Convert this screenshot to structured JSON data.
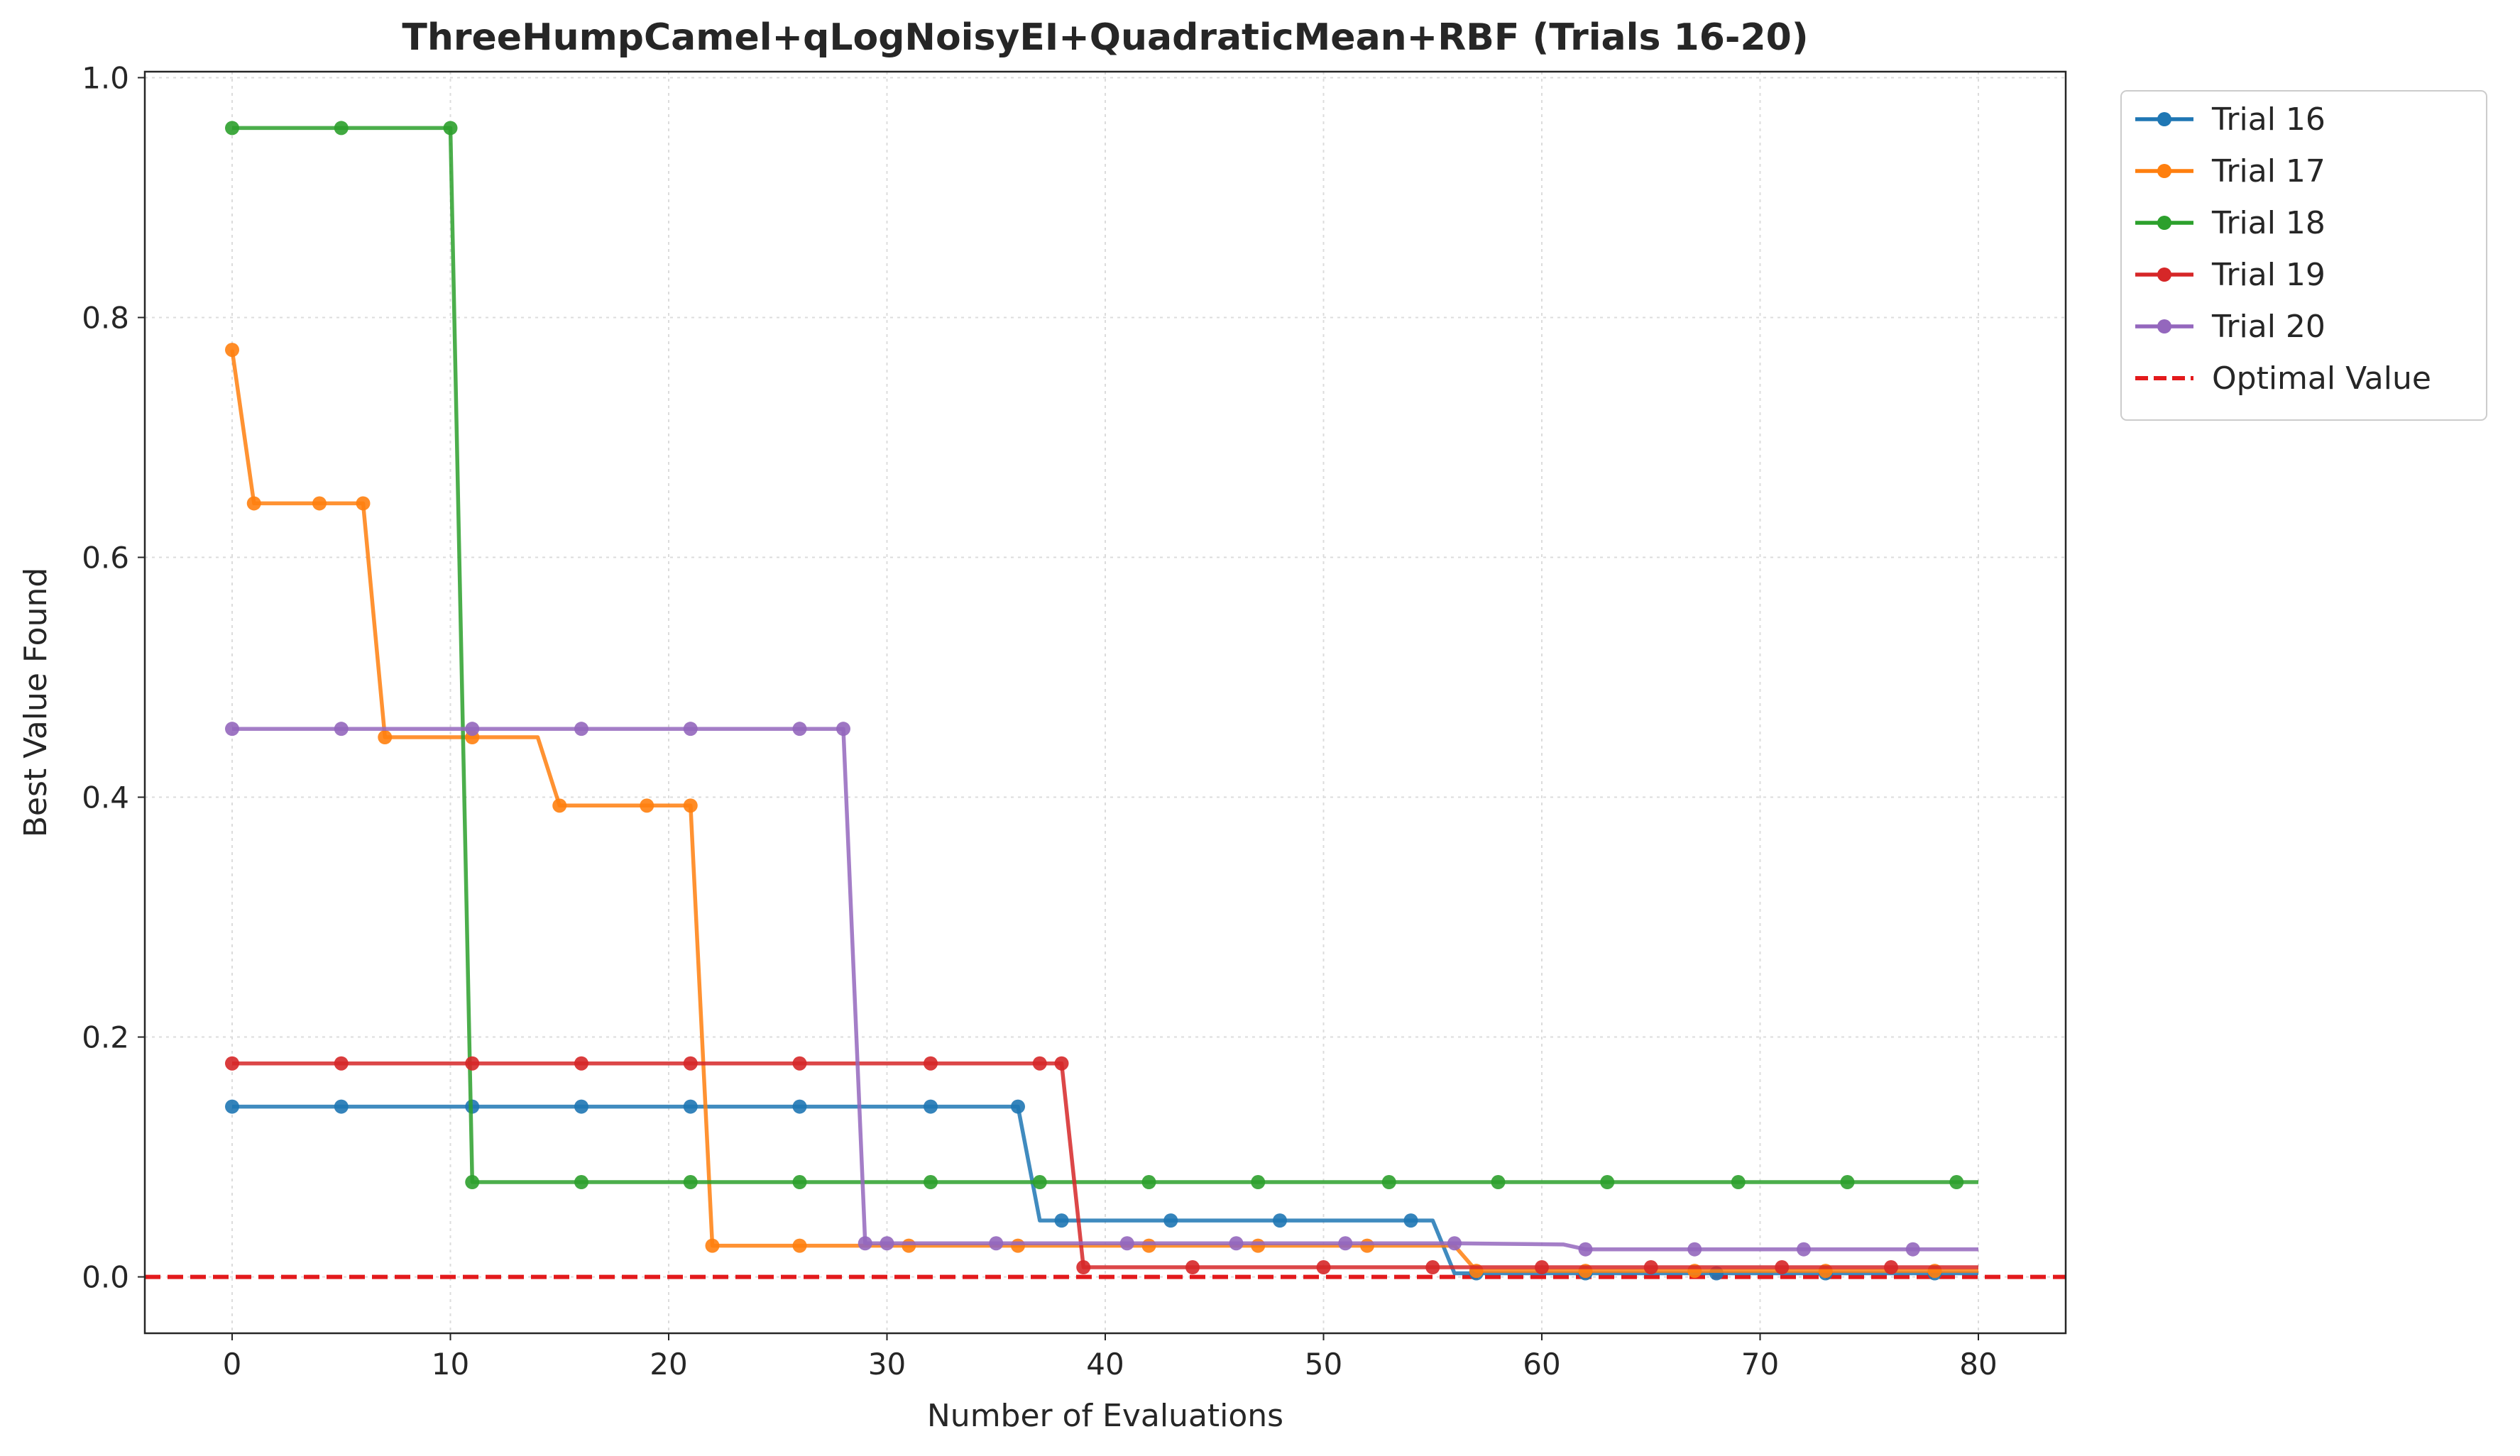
{
  "chart_data": {
    "type": "line",
    "title": "ThreeHumpCamel+qLogNoisyEI+QuadraticMean+RBF (Trials 16-20)",
    "xlabel": "Number of Evaluations",
    "ylabel": "Best Value Found",
    "xlim": [
      -4,
      84
    ],
    "ylim": [
      -0.047,
      1.005
    ],
    "xticks": [
      0,
      10,
      20,
      30,
      40,
      50,
      60,
      70,
      80
    ],
    "xtick_labels": [
      "0",
      "10",
      "20",
      "30",
      "40",
      "50",
      "60",
      "70",
      "80"
    ],
    "yticks": [
      0.0,
      0.2,
      0.4,
      0.6,
      0.8,
      1.0
    ],
    "ytick_labels": [
      "0.0",
      "0.2",
      "0.4",
      "0.6",
      "0.8",
      "1.0"
    ],
    "grid": true,
    "legend_position": "outside top-right",
    "series": [
      {
        "name": "Trial 16",
        "color": "#1f77b4",
        "x": [
          0,
          5,
          11,
          16,
          21,
          26,
          32,
          36,
          37,
          38,
          43,
          48,
          54,
          55,
          56,
          57,
          62,
          68,
          73,
          78,
          80
        ],
        "y": [
          0.142,
          0.142,
          0.142,
          0.142,
          0.142,
          0.142,
          0.142,
          0.142,
          0.047,
          0.047,
          0.047,
          0.047,
          0.047,
          0.047,
          0.003,
          0.003,
          0.003,
          0.003,
          0.003,
          0.003,
          0.003
        ],
        "markers": [
          0,
          5,
          11,
          16,
          21,
          26,
          32,
          36,
          38,
          43,
          48,
          54,
          57,
          62,
          68,
          73,
          78
        ]
      },
      {
        "name": "Trial 17",
        "color": "#ff7f0e",
        "x": [
          0,
          1,
          4,
          6,
          7,
          11,
          14,
          15,
          19,
          21,
          22,
          26,
          31,
          36,
          42,
          47,
          52,
          56,
          57,
          62,
          67,
          73,
          78,
          80
        ],
        "y": [
          0.773,
          0.645,
          0.645,
          0.645,
          0.45,
          0.45,
          0.45,
          0.393,
          0.393,
          0.393,
          0.026,
          0.026,
          0.026,
          0.026,
          0.026,
          0.026,
          0.026,
          0.026,
          0.005,
          0.005,
          0.005,
          0.005,
          0.005,
          0.005
        ],
        "markers": [
          0,
          1,
          4,
          6,
          7,
          11,
          15,
          19,
          21,
          22,
          26,
          31,
          36,
          42,
          47,
          52,
          57,
          62,
          67,
          73,
          78
        ]
      },
      {
        "name": "Trial 18",
        "color": "#2ca02c",
        "x": [
          0,
          5,
          10,
          11,
          16,
          21,
          26,
          32,
          37,
          42,
          47,
          53,
          58,
          63,
          69,
          74,
          79,
          80
        ],
        "y": [
          0.958,
          0.958,
          0.958,
          0.079,
          0.079,
          0.079,
          0.079,
          0.079,
          0.079,
          0.079,
          0.079,
          0.079,
          0.079,
          0.079,
          0.079,
          0.079,
          0.079,
          0.079
        ],
        "markers": [
          0,
          5,
          10,
          11,
          16,
          21,
          26,
          32,
          37,
          42,
          47,
          53,
          58,
          63,
          69,
          74,
          79
        ]
      },
      {
        "name": "Trial 19",
        "color": "#d62728",
        "x": [
          0,
          5,
          11,
          16,
          21,
          26,
          32,
          37,
          38,
          39,
          44,
          50,
          55,
          60,
          65,
          71,
          76,
          80
        ],
        "y": [
          0.178,
          0.178,
          0.178,
          0.178,
          0.178,
          0.178,
          0.178,
          0.178,
          0.178,
          0.008,
          0.008,
          0.008,
          0.008,
          0.008,
          0.008,
          0.008,
          0.008,
          0.008
        ],
        "markers": [
          0,
          5,
          11,
          16,
          21,
          26,
          32,
          37,
          38,
          39,
          44,
          50,
          55,
          60,
          65,
          71,
          76
        ]
      },
      {
        "name": "Trial 20",
        "color": "#9467bd",
        "x": [
          0,
          5,
          11,
          16,
          21,
          26,
          28,
          29,
          30,
          35,
          41,
          46,
          51,
          56,
          61,
          62,
          67,
          72,
          77,
          80
        ],
        "y": [
          0.457,
          0.457,
          0.457,
          0.457,
          0.457,
          0.457,
          0.457,
          0.028,
          0.028,
          0.028,
          0.028,
          0.028,
          0.028,
          0.028,
          0.027,
          0.023,
          0.023,
          0.023,
          0.023,
          0.023
        ],
        "markers": [
          0,
          5,
          11,
          16,
          21,
          26,
          28,
          29,
          30,
          35,
          41,
          46,
          51,
          56,
          62,
          67,
          72,
          77
        ]
      }
    ],
    "reference_line": {
      "name": "Optimal Value",
      "y": 0.0,
      "color": "#e31a1c",
      "style": "dashed"
    }
  }
}
